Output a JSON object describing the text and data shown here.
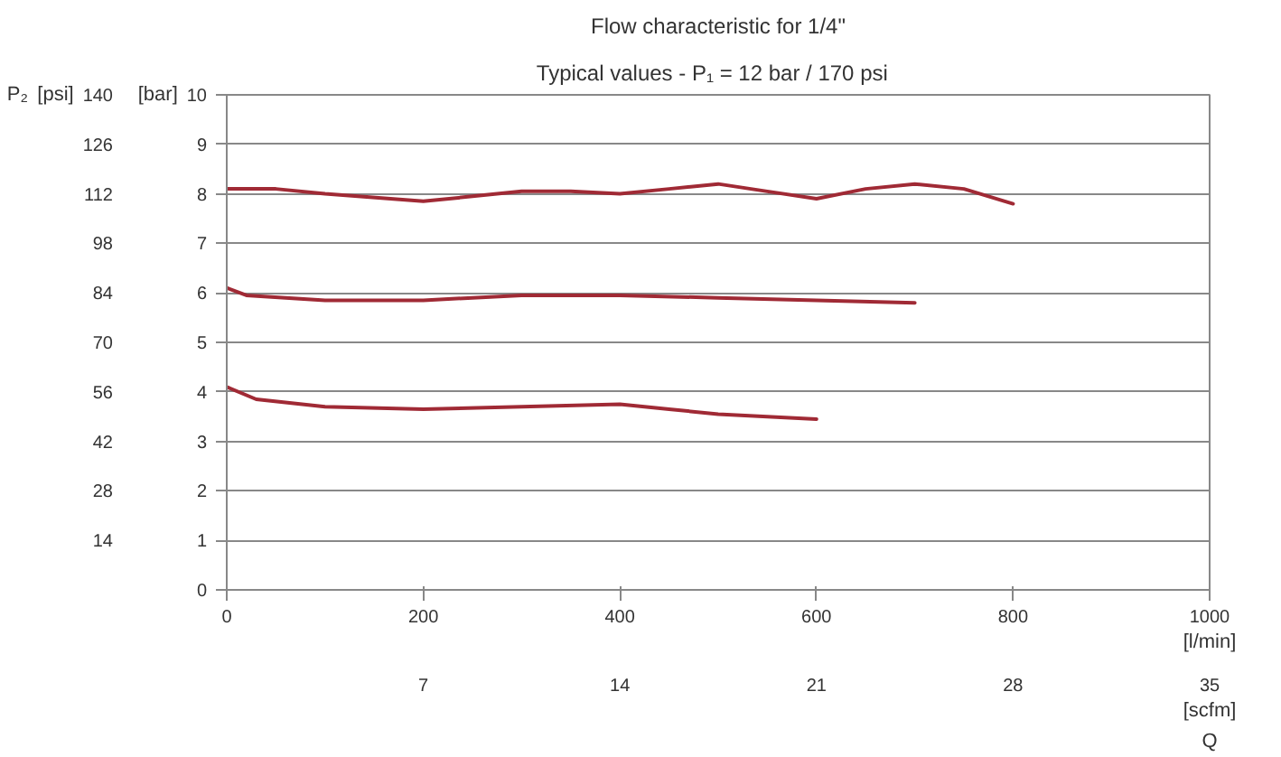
{
  "chart_data": {
    "type": "line",
    "title": "Flow characteristic for 1/4\"",
    "subtitle": "Typical values  -  P₁ = 12 bar / 170 psi",
    "xlabel": "[l/min]",
    "ylabel": "[bar]",
    "y2label": "[psi]",
    "x2label": "[scfm]",
    "annotations": [
      "P₂",
      "Q"
    ],
    "xlim": [
      0,
      1000
    ],
    "xticks": [
      0,
      200,
      400,
      600,
      800,
      1000
    ],
    "ylim": [
      0,
      10
    ],
    "yticks": [
      0,
      1,
      2,
      3,
      4,
      5,
      6,
      7,
      8,
      9,
      10
    ],
    "y2lim": [
      0,
      140
    ],
    "y2ticks": [
      14,
      28,
      42,
      56,
      70,
      84,
      98,
      112,
      126,
      140
    ],
    "x2lim": [
      0,
      35
    ],
    "x2ticks": [
      7,
      14,
      21,
      28,
      35
    ],
    "grid": "y",
    "line_style": "solid",
    "series": [
      {
        "color": "#a02a35",
        "x": [
          0,
          50,
          100,
          200,
          250,
          300,
          350,
          400,
          450,
          500,
          550,
          600,
          650,
          700,
          750,
          800
        ],
        "values": [
          8.1,
          8.1,
          8.0,
          7.85,
          7.95,
          8.05,
          8.05,
          8.0,
          8.1,
          8.2,
          8.05,
          7.9,
          8.1,
          8.2,
          8.1,
          7.8
        ]
      },
      {
        "color": "#a02a35",
        "x": [
          0,
          20,
          100,
          200,
          300,
          400,
          500,
          600,
          700
        ],
        "values": [
          6.1,
          5.95,
          5.85,
          5.85,
          5.95,
          5.95,
          5.9,
          5.85,
          5.8
        ]
      },
      {
        "color": "#a02a35",
        "x": [
          0,
          30,
          100,
          200,
          300,
          400,
          450,
          500,
          600
        ],
        "values": [
          4.1,
          3.85,
          3.7,
          3.65,
          3.7,
          3.75,
          3.65,
          3.55,
          3.45
        ]
      }
    ]
  }
}
